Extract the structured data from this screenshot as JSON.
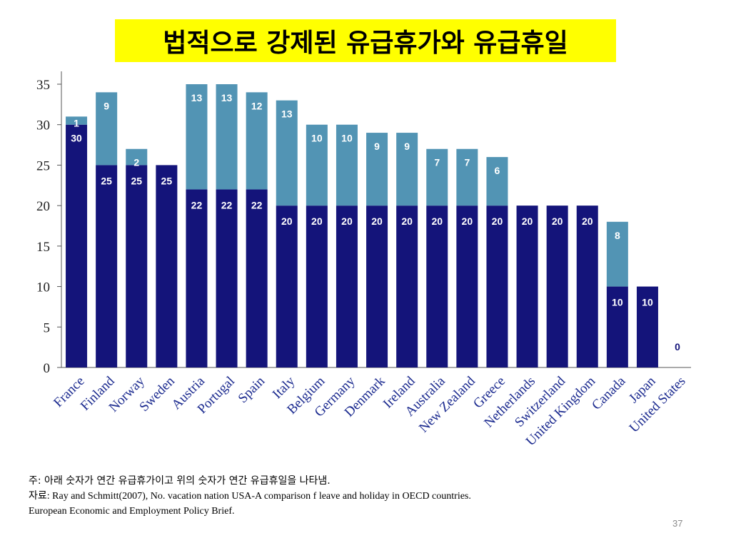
{
  "slide_title": "법적으로 강제된 유급휴가와 유급휴일",
  "page_number": "37",
  "notes": {
    "note_prefix": "주",
    "note_text": ": 아래 숫자가 연간 유급휴가이고 위의 숫자가 연간 유급휴일을 나타냄.",
    "source_prefix": "자료",
    "source_text": ": Ray and Schmitt(2007), No. vacation nation USA-A comparison f leave and holiday in OECD countries.",
    "source_text2": "European Economic and Employment Policy Brief."
  },
  "chart_data": {
    "type": "bar",
    "stacked": true,
    "categories": [
      "France",
      "Finland",
      "Norway",
      "Sweden",
      "Austria",
      "Portugal",
      "Spain",
      "Italy",
      "Belgium",
      "Germany",
      "Denmark",
      "Ireland",
      "Australia",
      "New Zealand",
      "Greece",
      "Netherlands",
      "Switzerland",
      "United Kingdom",
      "Canada",
      "Japan",
      "United States"
    ],
    "series": [
      {
        "name": "Paid vacation",
        "color": "#14147a",
        "values": [
          30,
          25,
          25,
          25,
          22,
          22,
          22,
          20,
          20,
          20,
          20,
          20,
          20,
          20,
          20,
          20,
          20,
          20,
          10,
          10,
          0
        ]
      },
      {
        "name": "Paid holidays",
        "color": "#5294b4",
        "values": [
          1,
          9,
          2,
          0,
          13,
          13,
          12,
          13,
          10,
          10,
          9,
          9,
          7,
          7,
          6,
          0,
          0,
          0,
          8,
          0,
          0
        ]
      }
    ],
    "bar_labels": {
      "bottom": [
        "30",
        "25",
        "25",
        "25",
        "22",
        "22",
        "22",
        "20",
        "20",
        "20",
        "20",
        "20",
        "20",
        "20",
        "20",
        "20",
        "20",
        "20",
        "10",
        "10",
        "0"
      ],
      "top": [
        "1",
        "9",
        "2",
        "",
        "13",
        "13",
        "12",
        "13",
        "10",
        "10",
        "9",
        "9",
        "7",
        "7",
        "6",
        "",
        "",
        "",
        "8",
        "",
        ""
      ]
    },
    "yticks": [
      "0",
      "5",
      "10",
      "15",
      "20",
      "25",
      "30",
      "35"
    ],
    "ytick_values": [
      0,
      5,
      10,
      15,
      20,
      25,
      30,
      35
    ],
    "ylim": [
      0,
      35
    ],
    "xlabel": "",
    "ylabel": "",
    "title": ""
  }
}
